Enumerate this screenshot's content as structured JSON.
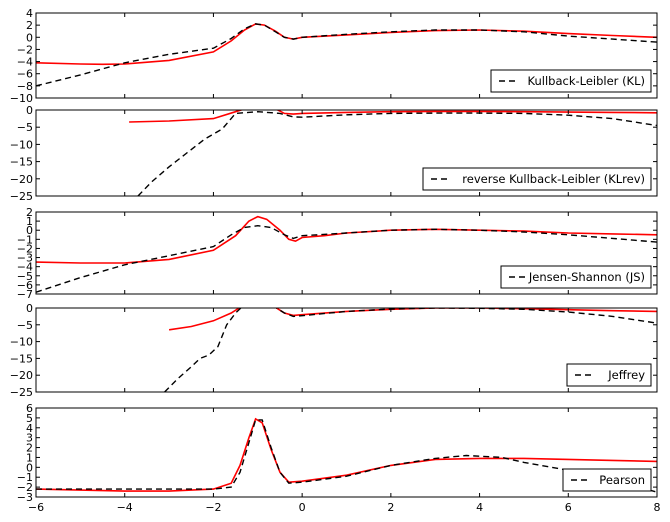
{
  "chart_data": [
    {
      "type": "line",
      "xlim": [
        -6,
        8
      ],
      "ylim": [
        -10,
        4
      ],
      "yticks": [
        4,
        2,
        0,
        -2,
        -4,
        -6,
        -8,
        -10
      ],
      "legend": {
        "label": "Kullback-Leibler (KL)",
        "placement": "lower-right"
      },
      "series": [
        {
          "style": "solid",
          "color": "#ff0000",
          "x": [
            -6,
            -5,
            -4.5,
            -4,
            -3,
            -2,
            -1.6,
            -1.3,
            -1.05,
            -0.85,
            -0.6,
            -0.4,
            -0.2,
            0,
            1,
            2,
            3,
            4,
            5,
            6,
            7,
            8
          ],
          "y": [
            -4.2,
            -4.4,
            -4.45,
            -4.4,
            -3.8,
            -2.4,
            -0.6,
            1.2,
            2.2,
            2.0,
            1.0,
            0.0,
            -0.3,
            0.0,
            0.4,
            0.8,
            1.1,
            1.2,
            1.0,
            0.6,
            0.3,
            0.0
          ]
        },
        {
          "style": "dashed",
          "color": "#000000",
          "x": [
            -6,
            -5,
            -4,
            -3,
            -2,
            -1.6,
            -1.3,
            -1.05,
            -0.85,
            -0.6,
            -0.4,
            -0.2,
            0,
            1,
            2,
            3,
            4,
            5,
            6,
            7,
            8
          ],
          "y": [
            -8.0,
            -6.2,
            -4.2,
            -2.8,
            -1.8,
            -0.2,
            1.4,
            2.2,
            2.0,
            0.9,
            0.0,
            -0.3,
            0.0,
            0.5,
            0.9,
            1.2,
            1.2,
            0.9,
            0.2,
            -0.3,
            -0.8
          ]
        }
      ]
    },
    {
      "type": "line",
      "xlim": [
        -6,
        8
      ],
      "ylim": [
        -25,
        0
      ],
      "yticks": [
        0,
        -5,
        -10,
        -15,
        -20,
        -25
      ],
      "legend": {
        "label": "reverse Kullback-Leibler (KLrev)",
        "placement": "lower-right"
      },
      "series": [
        {
          "style": "solid",
          "color": "#ff0000",
          "x": [
            -3.9,
            -3,
            -2,
            -1.5,
            -1,
            -0.7,
            -0.4,
            -0.2,
            0,
            1,
            2,
            3,
            4,
            5,
            6,
            7,
            8
          ],
          "y": [
            -3.5,
            -3.2,
            -2.5,
            -0.5,
            1.5,
            1.0,
            -1.0,
            -1.2,
            -1.0,
            -0.7,
            -0.5,
            -0.4,
            -0.4,
            -0.5,
            -0.6,
            -0.7,
            -0.8
          ]
        },
        {
          "style": "dashed",
          "color": "#000000",
          "x": [
            -3.7,
            -3.4,
            -3,
            -2.6,
            -2.2,
            -1.8,
            -1.5,
            -1,
            -0.5,
            -0.2,
            0,
            1,
            2,
            3,
            4,
            5,
            6,
            7,
            8
          ],
          "y": [
            -25,
            -21,
            -16.5,
            -12.5,
            -8.5,
            -5.5,
            -1.0,
            -0.5,
            -1.0,
            -2.0,
            -2.1,
            -1.4,
            -1.0,
            -0.9,
            -0.9,
            -1.0,
            -1.5,
            -2.5,
            -4.5
          ]
        }
      ]
    },
    {
      "type": "line",
      "xlim": [
        -6,
        8
      ],
      "ylim": [
        -7,
        2
      ],
      "yticks": [
        2,
        1,
        0,
        -1,
        -2,
        -3,
        -4,
        -5,
        -6,
        -7
      ],
      "legend": {
        "label": "Jensen-Shannon (JS)",
        "placement": "lower-right"
      },
      "series": [
        {
          "style": "solid",
          "color": "#ff0000",
          "x": [
            -6,
            -5,
            -4,
            -3,
            -2,
            -1.5,
            -1.2,
            -1,
            -0.8,
            -0.5,
            -0.3,
            -0.15,
            0,
            0.5,
            1,
            2,
            3,
            4,
            5,
            6,
            7,
            8
          ],
          "y": [
            -3.5,
            -3.6,
            -3.6,
            -3.2,
            -2.2,
            -0.6,
            1.0,
            1.5,
            1.2,
            0.0,
            -1.0,
            -1.2,
            -0.8,
            -0.6,
            -0.3,
            0.0,
            0.1,
            0.0,
            -0.1,
            -0.3,
            -0.4,
            -0.5
          ]
        },
        {
          "style": "dashed",
          "color": "#000000",
          "x": [
            -6,
            -5,
            -4,
            -3,
            -2,
            -1.6,
            -1.3,
            -1,
            -0.7,
            -0.4,
            -0.2,
            0,
            1,
            2,
            3,
            4,
            5,
            6,
            7,
            8
          ],
          "y": [
            -6.8,
            -5.2,
            -3.8,
            -2.8,
            -1.8,
            -0.5,
            0.3,
            0.5,
            0.3,
            -0.5,
            -0.9,
            -0.6,
            -0.3,
            0.0,
            0.1,
            0.0,
            -0.2,
            -0.5,
            -0.9,
            -1.3
          ]
        }
      ]
    },
    {
      "type": "line",
      "xlim": [
        -6,
        8
      ],
      "ylim": [
        -25,
        0
      ],
      "yticks": [
        0,
        -5,
        -10,
        -15,
        -20,
        -25
      ],
      "legend": {
        "label": "Jeffrey",
        "placement": "lower-right"
      },
      "series": [
        {
          "style": "solid",
          "color": "#ff0000",
          "x": [
            -3,
            -2.5,
            -2,
            -1.6,
            -1.3,
            -1,
            -0.7,
            -0.4,
            -0.2,
            0,
            1,
            2,
            3,
            4,
            5,
            6,
            7,
            8
          ],
          "y": [
            -6.5,
            -5.5,
            -3.8,
            -1.5,
            1.0,
            2.0,
            1.0,
            -1.5,
            -2.2,
            -2.0,
            -1.0,
            -0.4,
            0.0,
            0.0,
            -0.2,
            -0.5,
            -0.8,
            -1.0
          ]
        },
        {
          "style": "dashed",
          "color": "#000000",
          "x": [
            -3.1,
            -2.8,
            -2.5,
            -2.3,
            -2.1,
            -1.9,
            -1.7,
            -1.5,
            -1.3,
            -1,
            -0.7,
            -0.4,
            -0.2,
            0,
            1,
            2,
            3,
            4,
            5,
            6,
            7,
            8
          ],
          "y": [
            -25,
            -21,
            -17.5,
            -15,
            -14,
            -11.5,
            -5,
            -1.5,
            1.0,
            2.2,
            1.0,
            -1.5,
            -2.5,
            -2.3,
            -1.0,
            -0.3,
            0.0,
            -0.1,
            -0.4,
            -1.2,
            -2.5,
            -4.5
          ]
        }
      ]
    },
    {
      "type": "line",
      "xlim": [
        -6,
        8
      ],
      "ylim": [
        -3,
        6
      ],
      "yticks": [
        6,
        5,
        4,
        3,
        2,
        1,
        0,
        -1,
        -2,
        -3
      ],
      "legend": {
        "label": "Pearson",
        "placement": "lower-right"
      },
      "series": [
        {
          "style": "solid",
          "color": "#ff0000",
          "x": [
            -6,
            -5,
            -4,
            -3,
            -2,
            -1.6,
            -1.4,
            -1.2,
            -1.05,
            -0.9,
            -0.7,
            -0.5,
            -0.3,
            0,
            1,
            2,
            3,
            4,
            5,
            6,
            7,
            8
          ],
          "y": [
            -2.2,
            -2.3,
            -2.4,
            -2.4,
            -2.2,
            -1.6,
            0.2,
            3.0,
            4.9,
            4.5,
            1.8,
            -0.5,
            -1.5,
            -1.4,
            -0.8,
            0.2,
            0.8,
            0.9,
            0.9,
            0.8,
            0.7,
            0.6
          ]
        },
        {
          "style": "dashed",
          "color": "#000000",
          "x": [
            -6,
            -5,
            -4,
            -3,
            -2,
            -1.6,
            -1.4,
            -1.2,
            -1.05,
            -0.9,
            -0.7,
            -0.5,
            -0.3,
            0,
            1,
            2,
            3,
            3.7,
            4.5,
            5,
            6,
            7,
            8
          ],
          "y": [
            -2.2,
            -2.2,
            -2.2,
            -2.2,
            -2.2,
            -2.0,
            -0.5,
            2.5,
            4.8,
            4.8,
            2.0,
            -0.5,
            -1.6,
            -1.5,
            -0.9,
            0.2,
            0.9,
            1.2,
            1.0,
            0.5,
            -0.3,
            -1.3,
            -2.5
          ]
        }
      ]
    }
  ],
  "x_axis": {
    "ticks": [
      -6,
      -4,
      -2,
      0,
      2,
      4,
      6,
      8
    ]
  },
  "colors": {
    "model": "#ff0000",
    "target": "#000000"
  }
}
